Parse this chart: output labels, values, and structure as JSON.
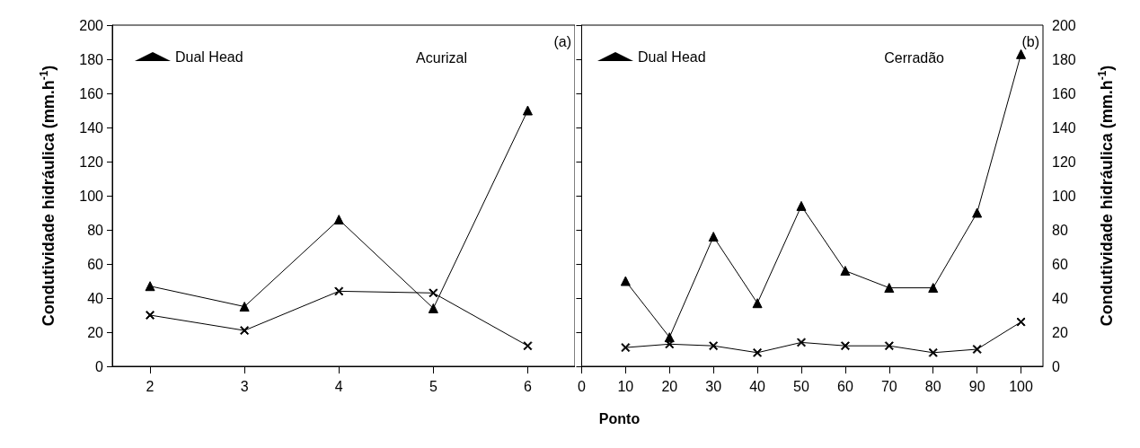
{
  "chart_data": [
    {
      "type": "line",
      "xlabel": "Ponto",
      "ylabel": "Condutividade hidráulica (mm.h$^{-1}$)",
      "x": [
        2,
        3,
        4,
        5,
        6
      ],
      "xlim": [
        1.6,
        6.5
      ],
      "xticks": [
        2,
        3,
        4,
        5,
        6
      ],
      "ylim": [
        0,
        200
      ],
      "yticks": [
        0,
        20,
        40,
        60,
        80,
        100,
        120,
        140,
        160,
        180,
        200
      ],
      "legend": "top left",
      "grid": false,
      "annotations": [
        "(a)",
        "Acurizal"
      ],
      "series": [
        {
          "name": "Dual Head",
          "color": "#000000",
          "marker": "triangle",
          "values": [
            47,
            35,
            86,
            34,
            150
          ]
        },
        {
          "color": "#000000",
          "marker": "cross",
          "values": [
            30,
            21,
            44,
            43,
            12
          ]
        }
      ]
    },
    {
      "type": "line",
      "ylabel": "Condutividade hidráulica (mm.h$^{-1}$)",
      "x": [
        10,
        20,
        30,
        40,
        50,
        60,
        70,
        80,
        90,
        100
      ],
      "xlim": [
        0,
        105
      ],
      "xticks": [
        0,
        10,
        20,
        30,
        40,
        50,
        60,
        70,
        80,
        90,
        100
      ],
      "ylim": [
        0,
        200
      ],
      "yticks": [
        0,
        20,
        40,
        60,
        80,
        100,
        120,
        140,
        160,
        180,
        200
      ],
      "legend": "top left",
      "grid": false,
      "annotations": [
        "(b)",
        "Cerradão"
      ],
      "series": [
        {
          "name": "Dual Head",
          "color": "#000000",
          "marker": "triangle",
          "values": [
            50,
            17,
            76,
            37,
            94,
            56,
            46,
            46,
            90,
            183
          ]
        },
        {
          "color": "#000000",
          "marker": "cross",
          "values": [
            11,
            13,
            12,
            8,
            14,
            12,
            12,
            8,
            10,
            26
          ]
        }
      ]
    }
  ]
}
